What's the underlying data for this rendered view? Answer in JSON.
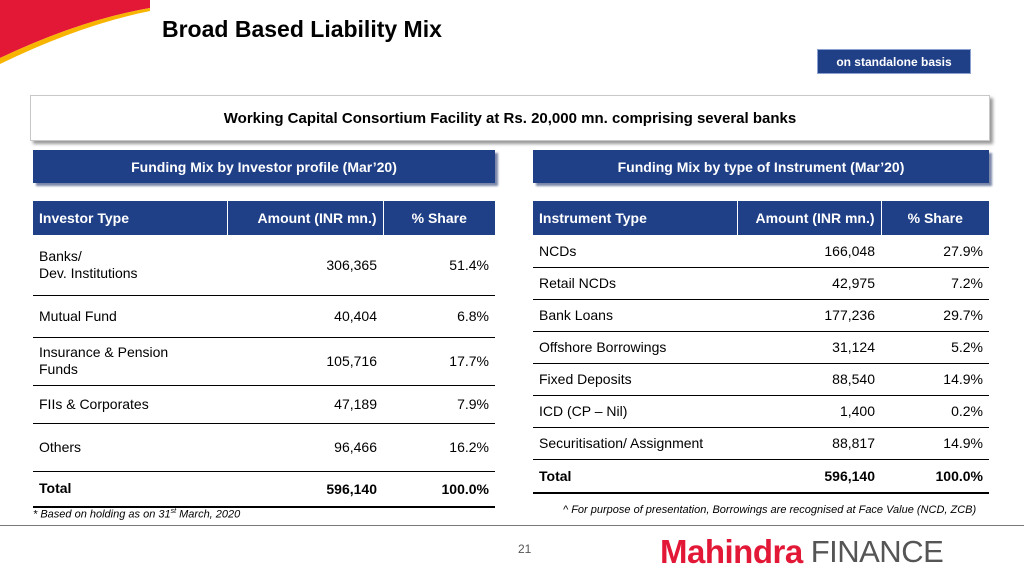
{
  "header": {
    "title": "Broad Based Liability Mix",
    "badge": "on standalone basis",
    "banner": "Working Capital Consortium Facility at Rs. 20,000 mn. comprising several banks"
  },
  "left": {
    "heading": "Funding Mix by Investor profile (Mar’20)",
    "columns": [
      "Investor Type",
      "Amount (INR mn.)",
      "% Share"
    ],
    "rows": [
      {
        "type_line1": "Banks/",
        "type_line2": "Dev. Institutions",
        "amount": "306,365",
        "share": "51.4%"
      },
      {
        "type_line1": "Mutual Fund",
        "type_line2": "",
        "amount": "40,404",
        "share": "6.8%"
      },
      {
        "type_line1": "Insurance & Pension",
        "type_line2": "Funds",
        "amount": "105,716",
        "share": "17.7%"
      },
      {
        "type_line1": "FIIs & Corporates",
        "type_line2": "",
        "amount": "47,189",
        "share": "7.9%"
      },
      {
        "type_line1": "Others",
        "type_line2": "",
        "amount": "96,466",
        "share": "16.2%"
      }
    ],
    "total": {
      "label": "Total",
      "amount": "596,140",
      "share": "100.0%"
    },
    "footnote_pre": "* Based on holding as on 31",
    "footnote_sup": "st",
    "footnote_post": " March, 2020"
  },
  "right": {
    "heading": "Funding Mix by type of Instrument (Mar’20)",
    "columns": [
      "Instrument Type",
      "Amount (INR mn.)",
      "% Share"
    ],
    "rows": [
      {
        "type": "NCDs",
        "amount": "166,048",
        "share": "27.9%"
      },
      {
        "type": "Retail NCDs",
        "amount": "42,975",
        "share": "7.2%"
      },
      {
        "type": "Bank Loans",
        "amount": "177,236",
        "share": "29.7%"
      },
      {
        "type": "Offshore Borrowings",
        "amount": "31,124",
        "share": "5.2%"
      },
      {
        "type": "Fixed Deposits",
        "amount": "88,540",
        "share": "14.9%"
      },
      {
        "type": "ICD (CP – Nil)",
        "amount": "1,400",
        "share": "0.2%"
      },
      {
        "type": "Securitisation/ Assignment",
        "amount": "88,817",
        "share": "14.9%"
      }
    ],
    "total": {
      "label": "Total",
      "amount": "596,140",
      "share": "100.0%"
    },
    "footnote": "^ For purpose of presentation, Borrowings are recognised at Face Value (NCD, ZCB)"
  },
  "footer": {
    "page_number": "21",
    "logo_brand": "Mahindra",
    "logo_suffix": "FINANCE"
  },
  "colors": {
    "header_blue": "#1f3f87",
    "brand_red": "#e31837",
    "deco_yellow": "#f7b500"
  }
}
